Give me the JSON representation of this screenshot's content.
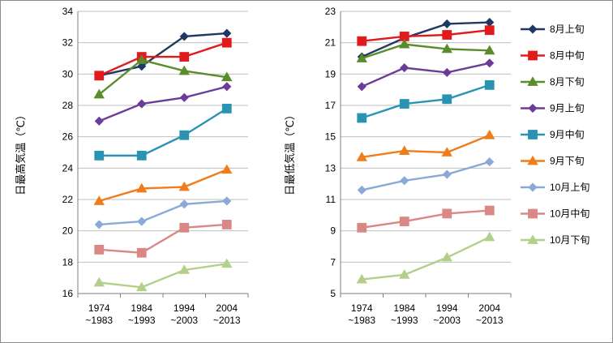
{
  "chart_data": [
    {
      "type": "line",
      "ylabel": "日最高気温（℃）",
      "xlabel": "",
      "categories": [
        [
          "1974",
          "~1983"
        ],
        [
          "1984",
          "~1993"
        ],
        [
          "1994",
          "~2003"
        ],
        [
          "2004",
          "~2013"
        ]
      ],
      "ylim": [
        16,
        34
      ],
      "yticks": [
        16,
        18,
        20,
        22,
        24,
        26,
        28,
        30,
        32,
        34
      ],
      "grid": true,
      "series": [
        {
          "name": "8月上旬",
          "values": [
            29.9,
            30.5,
            32.4,
            32.6
          ]
        },
        {
          "name": "8月中旬",
          "values": [
            29.9,
            31.1,
            31.1,
            32.0
          ]
        },
        {
          "name": "8月下旬",
          "values": [
            28.7,
            30.9,
            30.2,
            29.8
          ]
        },
        {
          "name": "9月上旬",
          "values": [
            27.0,
            28.1,
            28.5,
            29.2
          ]
        },
        {
          "name": "9月中旬",
          "values": [
            24.8,
            24.8,
            26.1,
            27.8
          ]
        },
        {
          "name": "9月下旬",
          "values": [
            21.9,
            22.7,
            22.8,
            23.9
          ]
        },
        {
          "name": "10月上旬",
          "values": [
            20.4,
            20.6,
            21.7,
            21.9
          ]
        },
        {
          "name": "10月中旬",
          "values": [
            18.8,
            18.6,
            20.2,
            20.4
          ]
        },
        {
          "name": "10月下旬",
          "values": [
            16.7,
            16.4,
            17.5,
            17.9
          ]
        }
      ]
    },
    {
      "type": "line",
      "ylabel": "日最低気温（℃）",
      "xlabel": "",
      "categories": [
        [
          "1974",
          "~1983"
        ],
        [
          "1984",
          "~1993"
        ],
        [
          "1994",
          "~2003"
        ],
        [
          "2004",
          "~2013"
        ]
      ],
      "ylim": [
        5,
        23
      ],
      "yticks": [
        5,
        7,
        9,
        11,
        13,
        15,
        17,
        19,
        21,
        23
      ],
      "grid": true,
      "series": [
        {
          "name": "8月上旬",
          "values": [
            20.1,
            21.3,
            22.2,
            22.3
          ]
        },
        {
          "name": "8月中旬",
          "values": [
            21.1,
            21.4,
            21.5,
            21.8
          ]
        },
        {
          "name": "8月下旬",
          "values": [
            20.0,
            20.9,
            20.6,
            20.5
          ]
        },
        {
          "name": "9月上旬",
          "values": [
            18.2,
            19.4,
            19.1,
            19.7
          ]
        },
        {
          "name": "9月中旬",
          "values": [
            16.2,
            17.1,
            17.4,
            18.3
          ]
        },
        {
          "name": "9月下旬",
          "values": [
            13.7,
            14.1,
            14.0,
            15.1
          ]
        },
        {
          "name": "10月上旬",
          "values": [
            11.6,
            12.2,
            12.6,
            13.4
          ]
        },
        {
          "name": "10月中旬",
          "values": [
            9.2,
            9.6,
            10.1,
            10.3
          ]
        },
        {
          "name": "10月下旬",
          "values": [
            5.9,
            6.2,
            7.3,
            8.6
          ]
        }
      ]
    }
  ],
  "legend": {
    "placement": "right",
    "items": [
      {
        "name": "8月上旬",
        "color": "#1f3864",
        "marker": "diamond"
      },
      {
        "name": "8月中旬",
        "color": "#e31a1c",
        "marker": "square"
      },
      {
        "name": "8月下旬",
        "color": "#5b8c2a",
        "marker": "triangle"
      },
      {
        "name": "9月上旬",
        "color": "#6a3d9a",
        "marker": "diamond"
      },
      {
        "name": "9月中旬",
        "color": "#2a93b4",
        "marker": "square"
      },
      {
        "name": "9月下旬",
        "color": "#f07c1a",
        "marker": "triangle"
      },
      {
        "name": "10月上旬",
        "color": "#8aa9d6",
        "marker": "diamond"
      },
      {
        "name": "10月中旬",
        "color": "#d98886",
        "marker": "square"
      },
      {
        "name": "10月下旬",
        "color": "#b3d08a",
        "marker": "triangle"
      }
    ]
  }
}
